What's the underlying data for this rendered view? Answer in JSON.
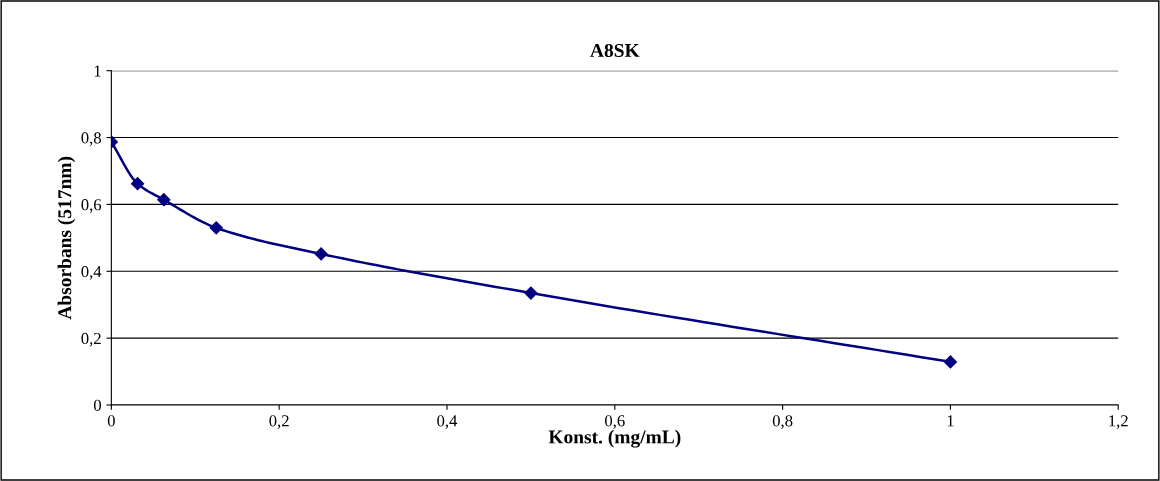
{
  "chart_data": {
    "type": "line",
    "title": "A8SK",
    "xlabel": "Konst. (mg/mL)",
    "ylabel": "Absorbans (517nm)",
    "x": [
      0,
      0.03125,
      0.0625,
      0.125,
      0.25,
      0.5,
      1
    ],
    "series": [
      {
        "color": "#000080",
        "values": [
          0.787,
          0.662,
          0.614,
          0.53,
          0.452,
          0.335,
          0.129
        ]
      }
    ],
    "xlim": [
      0,
      1.2
    ],
    "ylim": [
      0,
      1
    ],
    "xticks": [
      {
        "value": 0,
        "label": "0"
      },
      {
        "value": 0.2,
        "label": "0,2"
      },
      {
        "value": 0.4,
        "label": "0,4"
      },
      {
        "value": 0.6,
        "label": "0,6"
      },
      {
        "value": 0.8,
        "label": "0,8"
      },
      {
        "value": 1,
        "label": "1"
      },
      {
        "value": 1.2,
        "label": "1,2"
      }
    ],
    "yticks": [
      {
        "value": 0,
        "label": "0"
      },
      {
        "value": 0.2,
        "label": "0,2"
      },
      {
        "value": 0.4,
        "label": "0,4"
      },
      {
        "value": 0.6,
        "label": "0,6"
      },
      {
        "value": 0.8,
        "label": "0,8"
      },
      {
        "value": 1,
        "label": "1"
      }
    ],
    "grid": "y",
    "legend": false,
    "marker": "diamond",
    "line_style": "solid"
  }
}
